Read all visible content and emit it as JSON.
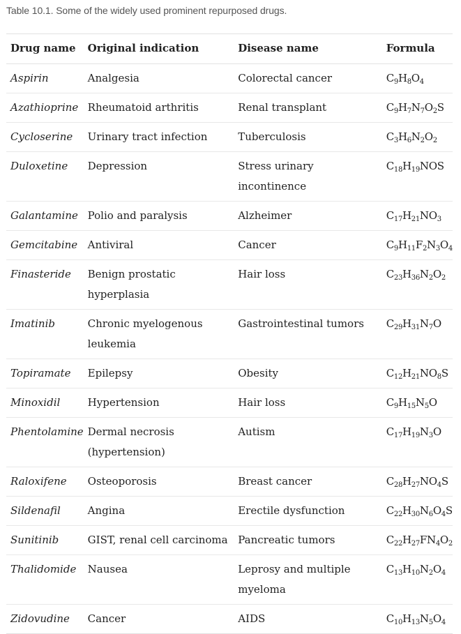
{
  "caption": {
    "label": "Table 10.1.",
    "text": " Some of the widely used prominent repurposed drugs."
  },
  "table": {
    "headers": [
      "Drug name",
      "Original indication",
      "Disease name",
      "Formula"
    ],
    "rows": [
      {
        "drug": "Aspirin",
        "indication": "Analgesia",
        "disease": "Colorectal cancer",
        "formula": [
          [
            "C",
            "9"
          ],
          [
            "H",
            "8"
          ],
          [
            "O",
            "4"
          ]
        ]
      },
      {
        "drug": "Azathioprine",
        "indication": "Rheumatoid arthritis",
        "disease": "Renal transplant",
        "formula": [
          [
            "C",
            "9"
          ],
          [
            "H",
            "7"
          ],
          [
            "N",
            "7"
          ],
          [
            "O",
            "2"
          ],
          [
            "S",
            ""
          ]
        ]
      },
      {
        "drug": "Cycloserine",
        "indication": "Urinary tract infection",
        "disease": "Tuberculosis",
        "formula": [
          [
            "C",
            "3"
          ],
          [
            "H",
            "6"
          ],
          [
            "N",
            "2"
          ],
          [
            "O",
            "2"
          ]
        ]
      },
      {
        "drug": "Duloxetine",
        "indication": "Depression",
        "disease": "Stress urinary incontinence",
        "formula": [
          [
            "C",
            "18"
          ],
          [
            "H",
            "19"
          ],
          [
            "NOS",
            ""
          ]
        ]
      },
      {
        "drug": "Galantamine",
        "indication": "Polio and paralysis",
        "disease": "Alzheimer",
        "formula": [
          [
            "C",
            "17"
          ],
          [
            "H",
            "21"
          ],
          [
            "NO",
            "3"
          ]
        ]
      },
      {
        "drug": "Gemcitabine",
        "indication": "Antiviral",
        "disease": "Cancer",
        "formula": [
          [
            "C",
            "9"
          ],
          [
            "H",
            "11"
          ],
          [
            "F",
            "2"
          ],
          [
            "N",
            "3"
          ],
          [
            "O",
            "4"
          ]
        ]
      },
      {
        "drug": "Finasteride",
        "indication": "Benign prostatic hyperplasia",
        "disease": "Hair loss",
        "formula": [
          [
            "C",
            "23"
          ],
          [
            "H",
            "36"
          ],
          [
            "N",
            "2"
          ],
          [
            "O",
            "2"
          ]
        ]
      },
      {
        "drug": "Imatinib",
        "indication": "Chronic myelogenous leukemia",
        "disease": "Gastrointestinal tumors",
        "formula": [
          [
            "C",
            "29"
          ],
          [
            "H",
            "31"
          ],
          [
            "N",
            "7"
          ],
          [
            "O",
            ""
          ]
        ]
      },
      {
        "drug": "Topiramate",
        "indication": "Epilepsy",
        "disease": "Obesity",
        "formula": [
          [
            "C",
            "12"
          ],
          [
            "H",
            "21"
          ],
          [
            "NO",
            "8"
          ],
          [
            "S",
            ""
          ]
        ]
      },
      {
        "drug": "Minoxidil",
        "indication": "Hypertension",
        "disease": "Hair loss",
        "formula": [
          [
            "C",
            "9"
          ],
          [
            "H",
            "15"
          ],
          [
            "N",
            "5"
          ],
          [
            "O",
            ""
          ]
        ]
      },
      {
        "drug": "Phentolamine",
        "indication": "Dermal necrosis (hypertension)",
        "disease": "Autism",
        "formula": [
          [
            "C",
            "17"
          ],
          [
            "H",
            "19"
          ],
          [
            "N",
            "3"
          ],
          [
            "O",
            ""
          ]
        ]
      },
      {
        "drug": "Raloxifene",
        "indication": "Osteoporosis",
        "disease": "Breast cancer",
        "formula": [
          [
            "C",
            "28"
          ],
          [
            "H",
            "27"
          ],
          [
            "NO",
            "4"
          ],
          [
            "S",
            ""
          ]
        ]
      },
      {
        "drug": "Sildenafil",
        "indication": "Angina",
        "disease": "Erectile dysfunction",
        "formula": [
          [
            "C",
            "22"
          ],
          [
            "H",
            "30"
          ],
          [
            "N",
            "6"
          ],
          [
            "O",
            "4"
          ],
          [
            "S",
            ""
          ]
        ]
      },
      {
        "drug": "Sunitinib",
        "indication": "GIST, renal cell carcinoma",
        "disease": "Pancreatic tumors",
        "formula": [
          [
            "C",
            "22"
          ],
          [
            "H",
            "27"
          ],
          [
            "FN",
            "4"
          ],
          [
            "O",
            "2"
          ]
        ]
      },
      {
        "drug": "Thalidomide",
        "indication": "Nausea",
        "disease": "Leprosy and multiple myeloma",
        "formula": [
          [
            "C",
            "13"
          ],
          [
            "H",
            "10"
          ],
          [
            "N",
            "2"
          ],
          [
            "O",
            "4"
          ]
        ]
      },
      {
        "drug": "Zidovudine",
        "indication": "Cancer",
        "disease": "AIDS",
        "formula": [
          [
            "C",
            "10"
          ],
          [
            "H",
            "13"
          ],
          [
            "N",
            "5"
          ],
          [
            "O",
            "4"
          ]
        ]
      }
    ]
  }
}
